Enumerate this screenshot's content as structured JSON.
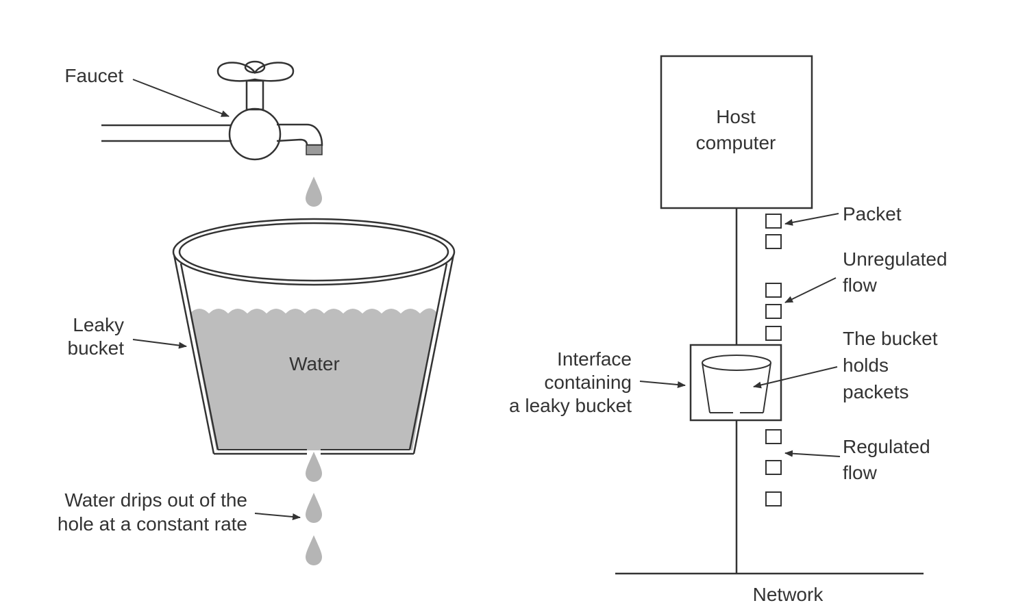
{
  "left": {
    "faucet_label": "Faucet",
    "bucket_label_1": "Leaky",
    "bucket_label_2": "bucket",
    "water_label": "Water",
    "drip_label_1": "Water drips out of the",
    "drip_label_2": "hole at a constant rate"
  },
  "right": {
    "host_label_1": "Host",
    "host_label_2": "computer",
    "packet_label": "Packet",
    "unregulated_label_1": "Unregulated",
    "unregulated_label_2": "flow",
    "bucket_holds_1": "The bucket",
    "bucket_holds_2": "holds",
    "bucket_holds_3": "packets",
    "interface_label_1": "Interface",
    "interface_label_2": "containing",
    "interface_label_3": "a leaky bucket",
    "regulated_label_1": "Regulated",
    "regulated_label_2": "flow",
    "network_label": "Network"
  },
  "colors": {
    "ink": "#333333",
    "water": "#bdbdbd",
    "drop": "#b5b5b5"
  }
}
